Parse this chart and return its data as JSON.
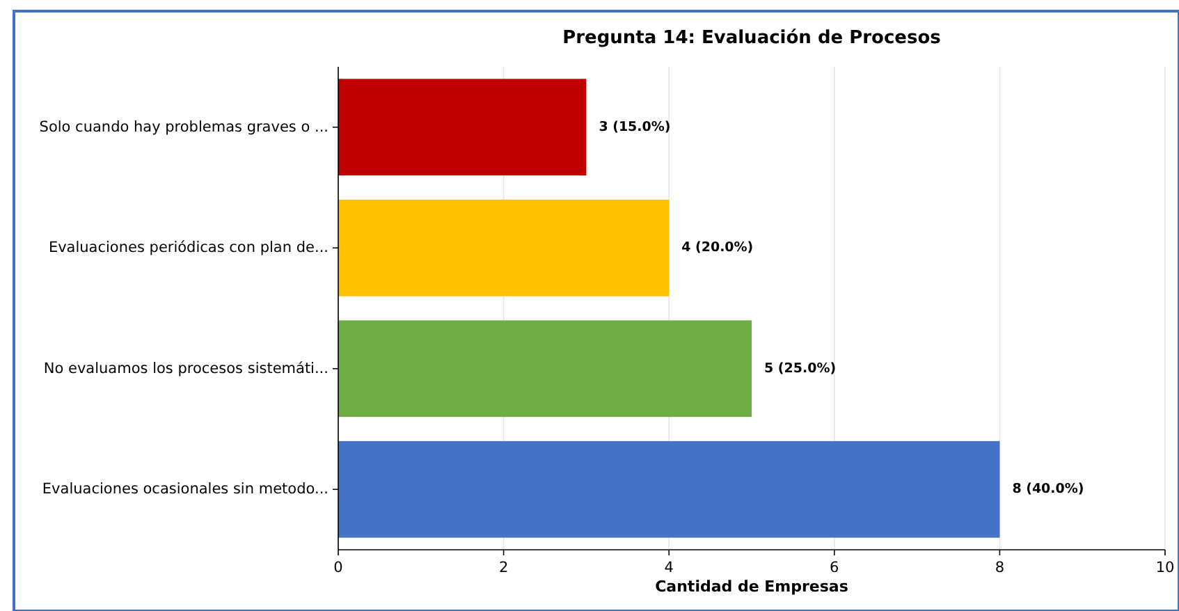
{
  "chart_data": {
    "type": "bar",
    "orientation": "horizontal",
    "title": "Pregunta 14: Evaluación de Procesos",
    "xlabel": "Cantidad de Empresas",
    "categories": [
      "Solo cuando hay problemas graves o ...",
      "Evaluaciones periódicas con plan de...",
      "No evaluamos los procesos sistemáti...",
      "Evaluaciones ocasionales sin metodo..."
    ],
    "values": [
      3,
      4,
      5,
      8
    ],
    "colors": [
      "#c00000",
      "#ffc000",
      "#70ad47",
      "#4472c4"
    ],
    "value_labels": [
      "3 (15.0%)",
      "4 (20.0%)",
      "5 (25.0%)",
      "8 (40.0%)"
    ],
    "xlim": [
      0,
      10
    ],
    "xticks": [
      0,
      2,
      4,
      6,
      8,
      10
    ],
    "grid": "x"
  }
}
